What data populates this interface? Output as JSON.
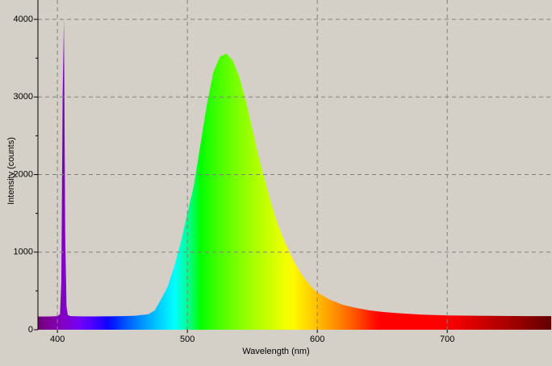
{
  "chart_data": {
    "type": "area",
    "x_label": "Wavelength (nm)",
    "y_label": "Intensity (counts)",
    "x": [
      385,
      390,
      395,
      400,
      402,
      403,
      404,
      405,
      406,
      407,
      408,
      410,
      420,
      430,
      440,
      450,
      460,
      470,
      475,
      480,
      485,
      490,
      495,
      500,
      505,
      510,
      515,
      520,
      525,
      530,
      535,
      540,
      545,
      550,
      555,
      560,
      565,
      570,
      575,
      580,
      585,
      590,
      595,
      600,
      610,
      620,
      630,
      640,
      650,
      660,
      670,
      680,
      690,
      700,
      720,
      740,
      760,
      780
    ],
    "values": [
      170,
      170,
      172,
      175,
      200,
      600,
      3000,
      4000,
      1200,
      300,
      190,
      175,
      172,
      172,
      173,
      175,
      180,
      200,
      250,
      400,
      560,
      820,
      1130,
      1500,
      1860,
      2380,
      2900,
      3320,
      3520,
      3560,
      3470,
      3260,
      2950,
      2590,
      2220,
      1910,
      1600,
      1340,
      1130,
      950,
      790,
      665,
      560,
      480,
      385,
      320,
      280,
      250,
      230,
      215,
      205,
      195,
      190,
      185,
      180,
      178,
      176,
      175
    ],
    "xlim": [
      385,
      780
    ],
    "ylim": [
      0,
      4250
    ],
    "xticks": [
      400,
      500,
      600,
      700
    ],
    "yticks": [
      0,
      1000,
      2000,
      3000,
      4000
    ],
    "y_minor_ticks": [
      500,
      1500,
      2500,
      3500
    ],
    "grid": true,
    "fill": "spectrum"
  }
}
